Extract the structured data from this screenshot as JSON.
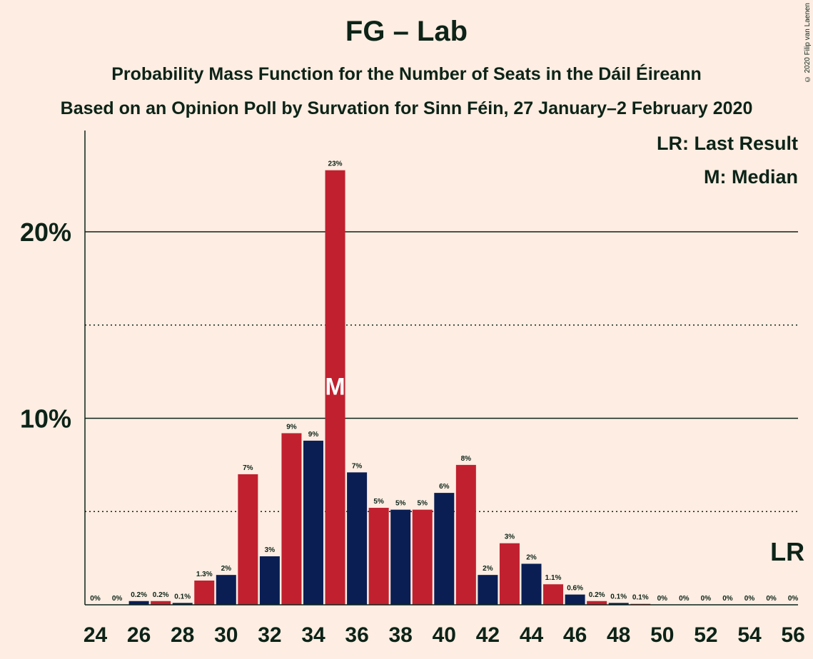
{
  "title": "FG – Lab",
  "subtitle": "Probability Mass Function for the Number of Seats in the Dáil Éireann",
  "subtitle2": "Based on an Opinion Poll by Survation for Sinn Féin, 27 January–2 February 2020",
  "copyright": "© 2020 Filip van Laenen",
  "legend": {
    "last_result": "LR: Last Result",
    "median": "M: Median"
  },
  "colors": {
    "red": "#c1202f",
    "navy": "#0a1e54",
    "background": "#fdede2",
    "text": "#0d2317"
  },
  "chart_data": {
    "type": "bar",
    "x": [
      24,
      25,
      26,
      27,
      28,
      29,
      30,
      31,
      32,
      33,
      34,
      35,
      36,
      37,
      38,
      39,
      40,
      41,
      42,
      43,
      44,
      45,
      46,
      47,
      48,
      49,
      50,
      51,
      52,
      53,
      54,
      55,
      56
    ],
    "values": [
      0,
      0,
      0.2,
      0.2,
      0.1,
      1.3,
      1.6,
      7.0,
      2.6,
      9.2,
      8.8,
      23.3,
      7.1,
      5.2,
      5.1,
      5.1,
      6.0,
      7.5,
      1.6,
      3.3,
      2.2,
      1.1,
      0.55,
      0.2,
      0.1,
      0.05,
      0,
      0,
      0,
      0,
      0,
      0,
      0
    ],
    "labels": [
      "0%",
      "0%",
      "0.2%",
      "0.2%",
      "0.1%",
      "1.3%",
      "2%",
      "7%",
      "3%",
      "9%",
      "9%",
      "23%",
      "7%",
      "5%",
      "5%",
      "5%",
      "6%",
      "8%",
      "2%",
      "3%",
      "2%",
      "1.1%",
      "0.6%",
      "0.2%",
      "0.1%",
      "0.1%",
      "0%",
      "0%",
      "0%",
      "0%",
      "0%",
      "0%",
      "0%"
    ],
    "xticks": [
      "24",
      "26",
      "28",
      "30",
      "32",
      "34",
      "36",
      "38",
      "40",
      "42",
      "44",
      "46",
      "48",
      "50",
      "52",
      "54",
      "56"
    ],
    "yticks": [
      "10%",
      "20%"
    ],
    "ylim": [
      0,
      25
    ],
    "gridlines_solid": [
      10,
      20
    ],
    "gridlines_dotted": [
      5,
      15
    ],
    "median_seat": 35,
    "median_marker": "M",
    "last_result_seat": 56,
    "last_result_marker": "LR"
  }
}
